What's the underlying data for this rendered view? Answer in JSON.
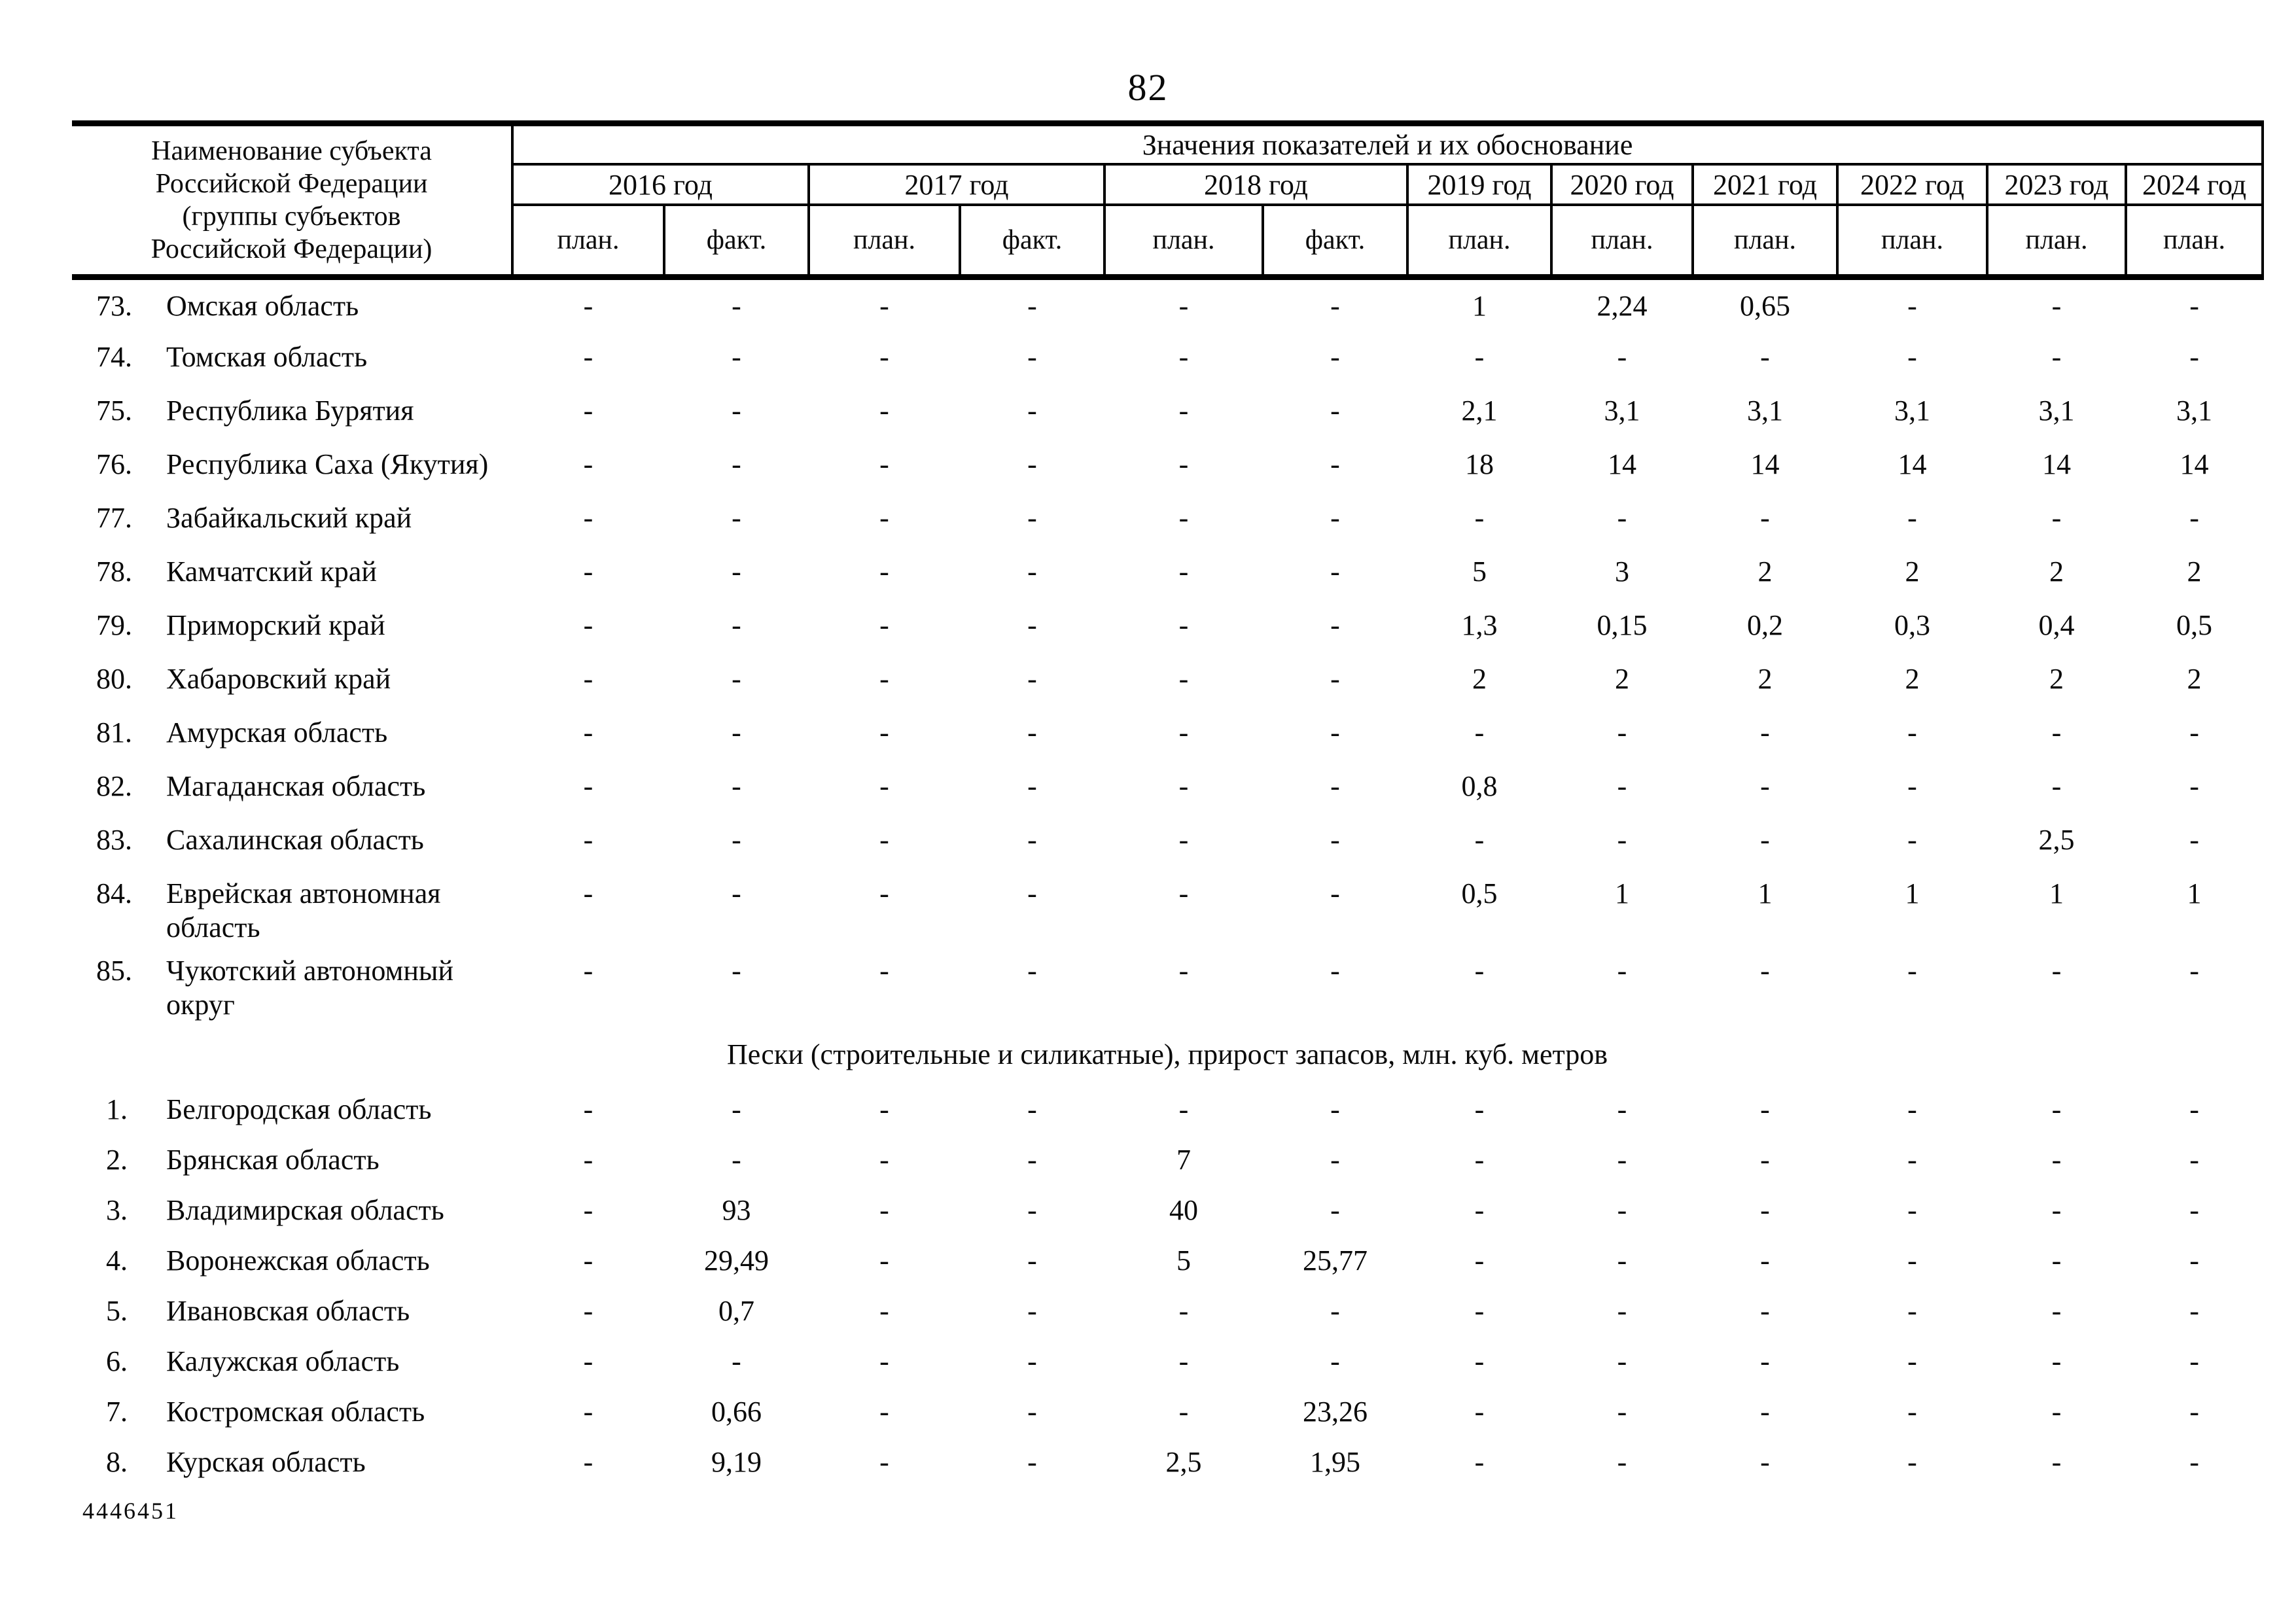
{
  "page": {
    "number": "82",
    "footer_code": "4446451"
  },
  "table": {
    "name_header_lines": [
      "Наименование субъекта",
      "Российской Федерации",
      "(группы субъектов",
      "Российской Федерации)"
    ],
    "values_header": "Значения показателей и их обоснование",
    "year_headers": [
      {
        "label": "2016 год",
        "span": 2
      },
      {
        "label": "2017 год",
        "span": 2
      },
      {
        "label": "2018 год",
        "span": 2
      },
      {
        "label": "2019 год",
        "span": 1
      },
      {
        "label": "2020 год",
        "span": 1
      },
      {
        "label": "2021 год",
        "span": 1
      },
      {
        "label": "2022 год",
        "span": 1
      },
      {
        "label": "2023 год",
        "span": 1
      },
      {
        "label": "2024 год",
        "span": 1
      }
    ],
    "sub_headers": [
      "план.",
      "факт.",
      "план.",
      "факт.",
      "план.",
      "факт.",
      "план.",
      "план.",
      "план.",
      "план.",
      "план.",
      "план."
    ],
    "sections": [
      {
        "title": "",
        "rows": [
          {
            "num": "73.",
            "name": "Омская область",
            "values": [
              "-",
              "-",
              "-",
              "-",
              "-",
              "-",
              "1",
              "2,24",
              "0,65",
              "-",
              "-",
              "-"
            ]
          },
          {
            "num": "74.",
            "name": "Томская область",
            "values": [
              "-",
              "-",
              "-",
              "-",
              "-",
              "-",
              "-",
              "-",
              "-",
              "-",
              "-",
              "-"
            ]
          },
          {
            "num": "75.",
            "name": "Республика Бурятия",
            "values": [
              "-",
              "-",
              "-",
              "-",
              "-",
              "-",
              "2,1",
              "3,1",
              "3,1",
              "3,1",
              "3,1",
              "3,1"
            ]
          },
          {
            "num": "76.",
            "name": "Республика Саха (Якутия)",
            "values": [
              "-",
              "-",
              "-",
              "-",
              "-",
              "-",
              "18",
              "14",
              "14",
              "14",
              "14",
              "14"
            ]
          },
          {
            "num": "77.",
            "name": "Забайкальский край",
            "values": [
              "-",
              "-",
              "-",
              "-",
              "-",
              "-",
              "-",
              "-",
              "-",
              "-",
              "-",
              "-"
            ]
          },
          {
            "num": "78.",
            "name": "Камчатский край",
            "values": [
              "-",
              "-",
              "-",
              "-",
              "-",
              "-",
              "5",
              "3",
              "2",
              "2",
              "2",
              "2"
            ]
          },
          {
            "num": "79.",
            "name": "Приморский край",
            "values": [
              "-",
              "-",
              "-",
              "-",
              "-",
              "-",
              "1,3",
              "0,15",
              "0,2",
              "0,3",
              "0,4",
              "0,5"
            ]
          },
          {
            "num": "80.",
            "name": "Хабаровский край",
            "values": [
              "-",
              "-",
              "-",
              "-",
              "-",
              "-",
              "2",
              "2",
              "2",
              "2",
              "2",
              "2"
            ]
          },
          {
            "num": "81.",
            "name": "Амурская область",
            "values": [
              "-",
              "-",
              "-",
              "-",
              "-",
              "-",
              "-",
              "-",
              "-",
              "-",
              "-",
              "-"
            ]
          },
          {
            "num": "82.",
            "name": "Магаданская область",
            "values": [
              "-",
              "-",
              "-",
              "-",
              "-",
              "-",
              "0,8",
              "-",
              "-",
              "-",
              "-",
              "-"
            ]
          },
          {
            "num": "83.",
            "name": "Сахалинская область",
            "values": [
              "-",
              "-",
              "-",
              "-",
              "-",
              "-",
              "-",
              "-",
              "-",
              "-",
              "2,5",
              "-"
            ]
          },
          {
            "num": "84.",
            "name": "Еврейская автономная область",
            "values": [
              "-",
              "-",
              "-",
              "-",
              "-",
              "-",
              "0,5",
              "1",
              "1",
              "1",
              "1",
              "1"
            ]
          },
          {
            "num": "85.",
            "name": "Чукотский автономный округ",
            "values": [
              "-",
              "-",
              "-",
              "-",
              "-",
              "-",
              "-",
              "-",
              "-",
              "-",
              "-",
              "-"
            ]
          }
        ]
      },
      {
        "title": "Пески (строительные и силикатные), прирост запасов, млн. куб. метров",
        "rows": [
          {
            "num": "1.",
            "name": "Белгородская область",
            "values": [
              "-",
              "-",
              "-",
              "-",
              "-",
              "-",
              "-",
              "-",
              "-",
              "-",
              "-",
              "-"
            ]
          },
          {
            "num": "2.",
            "name": "Брянская область",
            "values": [
              "-",
              "-",
              "-",
              "-",
              "7",
              "-",
              "-",
              "-",
              "-",
              "-",
              "-",
              "-"
            ]
          },
          {
            "num": "3.",
            "name": "Владимирская область",
            "values": [
              "-",
              "93",
              "-",
              "-",
              "40",
              "-",
              "-",
              "-",
              "-",
              "-",
              "-",
              "-"
            ]
          },
          {
            "num": "4.",
            "name": "Воронежская область",
            "values": [
              "-",
              "29,49",
              "-",
              "-",
              "5",
              "25,77",
              "-",
              "-",
              "-",
              "-",
              "-",
              "-"
            ]
          },
          {
            "num": "5.",
            "name": "Ивановская область",
            "values": [
              "-",
              "0,7",
              "-",
              "-",
              "-",
              "-",
              "-",
              "-",
              "-",
              "-",
              "-",
              "-"
            ]
          },
          {
            "num": "6.",
            "name": "Калужская область",
            "values": [
              "-",
              "-",
              "-",
              "-",
              "-",
              "-",
              "-",
              "-",
              "-",
              "-",
              "-",
              "-"
            ]
          },
          {
            "num": "7.",
            "name": "Костромская область",
            "values": [
              "-",
              "0,66",
              "-",
              "-",
              "-",
              "23,26",
              "-",
              "-",
              "-",
              "-",
              "-",
              "-"
            ]
          },
          {
            "num": "8.",
            "name": "Курская область",
            "values": [
              "-",
              "9,19",
              "-",
              "-",
              "2,5",
              "1,95",
              "-",
              "-",
              "-",
              "-",
              "-",
              "-"
            ]
          }
        ]
      }
    ]
  }
}
